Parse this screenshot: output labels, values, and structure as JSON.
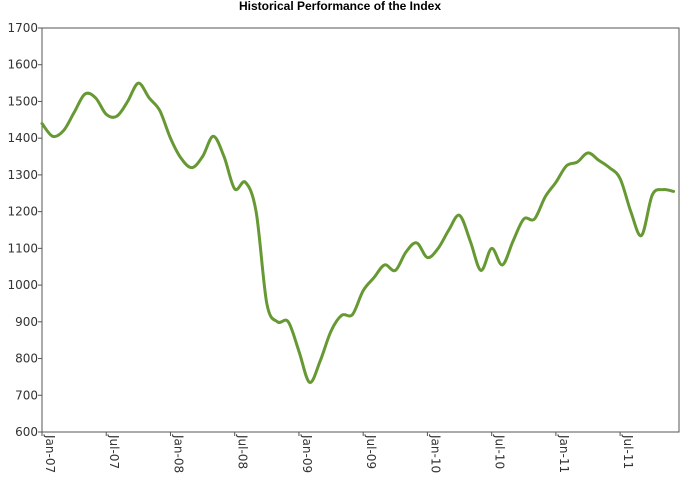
{
  "chart_data": {
    "type": "line",
    "title": "Historical Performance of the Index",
    "xlabel": "",
    "ylabel": "",
    "ylim": [
      600,
      1700
    ],
    "yticks": [
      "600",
      "700",
      "800",
      "900",
      "1000",
      "1100",
      "1200",
      "1300",
      "1400",
      "1500",
      "1600",
      "1700"
    ],
    "xticks": [
      "Jan-07",
      "Jul-07",
      "Jan-08",
      "Jul-08",
      "Jan-09",
      "Jul-09",
      "Jan-10",
      "Jul-10",
      "Jan-11",
      "Jul-11"
    ],
    "x_unit": "month",
    "x_start": "Jan-07",
    "x_end": "Dec-11",
    "grid": false,
    "line_color": "#669933",
    "series": [
      {
        "x": [
          "Jan-07",
          "Feb-07",
          "Mar-07",
          "Apr-07",
          "May-07",
          "Jun-07",
          "Jul-07",
          "Aug-07",
          "Sep-07",
          "Oct-07",
          "Nov-07",
          "Dec-07",
          "Jan-08",
          "Feb-08",
          "Mar-08",
          "Apr-08",
          "May-08",
          "Jun-08",
          "Jul-08",
          "Aug-08",
          "Sep-08",
          "Oct-08",
          "Nov-08",
          "Dec-08",
          "Jan-09",
          "Feb-09",
          "Mar-09",
          "Apr-09",
          "May-09",
          "Jun-09",
          "Jul-09",
          "Aug-09",
          "Sep-09",
          "Oct-09",
          "Nov-09",
          "Dec-09",
          "Jan-10",
          "Feb-10",
          "Mar-10",
          "Apr-10",
          "May-10",
          "Jun-10",
          "Jul-10",
          "Aug-10",
          "Sep-10",
          "Oct-10",
          "Nov-10",
          "Dec-10",
          "Jan-11",
          "Feb-11",
          "Mar-11",
          "Apr-11",
          "May-11",
          "Jun-11",
          "Jul-11",
          "Aug-11",
          "Sep-11",
          "Oct-11",
          "Nov-11",
          "Dec-11"
        ],
        "values": [
          1440,
          1405,
          1420,
          1470,
          1520,
          1510,
          1465,
          1460,
          1500,
          1550,
          1510,
          1475,
          1400,
          1345,
          1320,
          1350,
          1405,
          1350,
          1262,
          1280,
          1200,
          950,
          900,
          900,
          820,
          735,
          795,
          875,
          918,
          920,
          985,
          1020,
          1055,
          1040,
          1090,
          1115,
          1075,
          1100,
          1150,
          1190,
          1120,
          1040,
          1100,
          1055,
          1120,
          1180,
          1180,
          1240,
          1280,
          1325,
          1335,
          1360,
          1340,
          1320,
          1290,
          1200,
          1135,
          1245,
          1260,
          1255
        ]
      }
    ]
  }
}
